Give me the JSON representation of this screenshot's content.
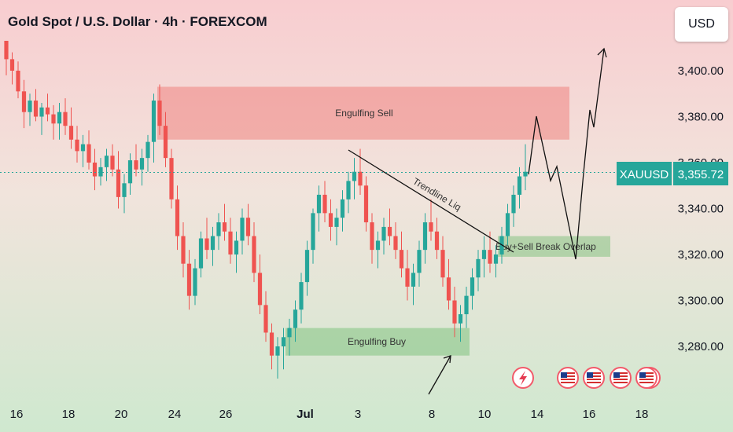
{
  "header": {
    "title": "Gold Spot / U.S. Dollar · 4h · FOREXCOM"
  },
  "currency_button": {
    "label": "USD"
  },
  "symbol_tag": {
    "symbol": "XAUUSD",
    "price": "3,355.72"
  },
  "chart_data": {
    "type": "candlestick",
    "symbol": "XAUUSD",
    "timeframe": "4h",
    "current_price": 3355.72,
    "y_ticks": [
      "3,400.00",
      "3,380.00",
      "3,360.00",
      "3,340.00",
      "3,320.00",
      "3,300.00",
      "3,280.00"
    ],
    "y_tick_values": [
      3400,
      3380,
      3360,
      3340,
      3320,
      3300,
      3280
    ],
    "x_ticks": [
      "16",
      "18",
      "20",
      "24",
      "26",
      "Jul",
      "3",
      "8",
      "10",
      "14",
      "16",
      "18"
    ],
    "ylim": [
      3260,
      3413
    ],
    "zones": [
      {
        "label": "Engulfing Sell",
        "low": 3370,
        "high": 3393,
        "color": "#ef5350",
        "opacity": 0.35
      },
      {
        "label": "Engulfing Buy",
        "low": 3276,
        "high": 3288,
        "color": "#4caf50",
        "opacity": 0.35
      },
      {
        "label": "Buy+Sell Break Overlap",
        "low": 3319,
        "high": 3328,
        "color": "#4caf50",
        "opacity": 0.35
      }
    ],
    "annotations": [
      {
        "text": "Trendline Liq"
      }
    ],
    "candles_ohlc_approx": [
      [
        3413,
        3413,
        3398,
        3405
      ],
      [
        3405,
        3408,
        3394,
        3400
      ],
      [
        3400,
        3404,
        3388,
        3391
      ],
      [
        3391,
        3396,
        3375,
        3382
      ],
      [
        3382,
        3390,
        3376,
        3387
      ],
      [
        3387,
        3392,
        3378,
        3380
      ],
      [
        3380,
        3386,
        3372,
        3384
      ],
      [
        3384,
        3390,
        3378,
        3381
      ],
      [
        3381,
        3385,
        3370,
        3377
      ],
      [
        3377,
        3386,
        3370,
        3382
      ],
      [
        3382,
        3388,
        3372,
        3376
      ],
      [
        3376,
        3384,
        3366,
        3370
      ],
      [
        3370,
        3376,
        3360,
        3365
      ],
      [
        3365,
        3372,
        3358,
        3368
      ],
      [
        3368,
        3374,
        3357,
        3360
      ],
      [
        3360,
        3366,
        3348,
        3354
      ],
      [
        3354,
        3362,
        3350,
        3358
      ],
      [
        3358,
        3366,
        3352,
        3363
      ],
      [
        3363,
        3368,
        3354,
        3357
      ],
      [
        3357,
        3365,
        3340,
        3345
      ],
      [
        3345,
        3355,
        3338,
        3351
      ],
      [
        3351,
        3364,
        3346,
        3361
      ],
      [
        3361,
        3368,
        3354,
        3357
      ],
      [
        3357,
        3366,
        3350,
        3362
      ],
      [
        3362,
        3372,
        3356,
        3369
      ],
      [
        3369,
        3390,
        3360,
        3387
      ],
      [
        3387,
        3394,
        3372,
        3376
      ],
      [
        3376,
        3382,
        3358,
        3362
      ],
      [
        3362,
        3366,
        3340,
        3344
      ],
      [
        3344,
        3350,
        3322,
        3328
      ],
      [
        3328,
        3334,
        3310,
        3316
      ],
      [
        3316,
        3322,
        3296,
        3302
      ],
      [
        3302,
        3318,
        3298,
        3314
      ],
      [
        3314,
        3330,
        3310,
        3327
      ],
      [
        3327,
        3336,
        3318,
        3322
      ],
      [
        3322,
        3332,
        3315,
        3328
      ],
      [
        3328,
        3338,
        3322,
        3334
      ],
      [
        3334,
        3342,
        3326,
        3330
      ],
      [
        3330,
        3336,
        3316,
        3320
      ],
      [
        3320,
        3330,
        3312,
        3326
      ],
      [
        3326,
        3340,
        3320,
        3336
      ],
      [
        3336,
        3342,
        3324,
        3328
      ],
      [
        3328,
        3334,
        3308,
        3312
      ],
      [
        3312,
        3320,
        3294,
        3298
      ],
      [
        3298,
        3304,
        3282,
        3286
      ],
      [
        3286,
        3290,
        3270,
        3276
      ],
      [
        3276,
        3284,
        3266,
        3280
      ],
      [
        3280,
        3288,
        3270,
        3284
      ],
      [
        3284,
        3292,
        3276,
        3288
      ],
      [
        3288,
        3300,
        3282,
        3296
      ],
      [
        3296,
        3312,
        3290,
        3308
      ],
      [
        3308,
        3326,
        3302,
        3322
      ],
      [
        3322,
        3340,
        3316,
        3338
      ],
      [
        3338,
        3350,
        3330,
        3346
      ],
      [
        3346,
        3352,
        3334,
        3338
      ],
      [
        3338,
        3344,
        3326,
        3332
      ],
      [
        3332,
        3340,
        3324,
        3336
      ],
      [
        3336,
        3348,
        3330,
        3344
      ],
      [
        3344,
        3356,
        3338,
        3352
      ],
      [
        3352,
        3362,
        3344,
        3356
      ],
      [
        3356,
        3366,
        3346,
        3350
      ],
      [
        3350,
        3354,
        3330,
        3334
      ],
      [
        3334,
        3338,
        3316,
        3322
      ],
      [
        3322,
        3330,
        3314,
        3326
      ],
      [
        3326,
        3336,
        3320,
        3332
      ],
      [
        3332,
        3340,
        3324,
        3328
      ],
      [
        3328,
        3334,
        3318,
        3322
      ],
      [
        3322,
        3330,
        3310,
        3314
      ],
      [
        3314,
        3322,
        3300,
        3306
      ],
      [
        3306,
        3316,
        3298,
        3312
      ],
      [
        3312,
        3326,
        3306,
        3322
      ],
      [
        3322,
        3338,
        3316,
        3334
      ],
      [
        3334,
        3344,
        3326,
        3330
      ],
      [
        3330,
        3336,
        3318,
        3322
      ],
      [
        3322,
        3328,
        3306,
        3310
      ],
      [
        3310,
        3318,
        3296,
        3300
      ],
      [
        3300,
        3306,
        3284,
        3290
      ],
      [
        3290,
        3298,
        3282,
        3294
      ],
      [
        3294,
        3306,
        3288,
        3302
      ],
      [
        3302,
        3314,
        3296,
        3310
      ],
      [
        3310,
        3322,
        3304,
        3318
      ],
      [
        3318,
        3328,
        3310,
        3322
      ],
      [
        3322,
        3330,
        3312,
        3316
      ],
      [
        3316,
        3324,
        3310,
        3320
      ],
      [
        3320,
        3332,
        3316,
        3328
      ],
      [
        3328,
        3342,
        3324,
        3338
      ],
      [
        3338,
        3350,
        3332,
        3346
      ],
      [
        3346,
        3358,
        3340,
        3354
      ],
      [
        3354,
        3368,
        3348,
        3356
      ]
    ]
  }
}
